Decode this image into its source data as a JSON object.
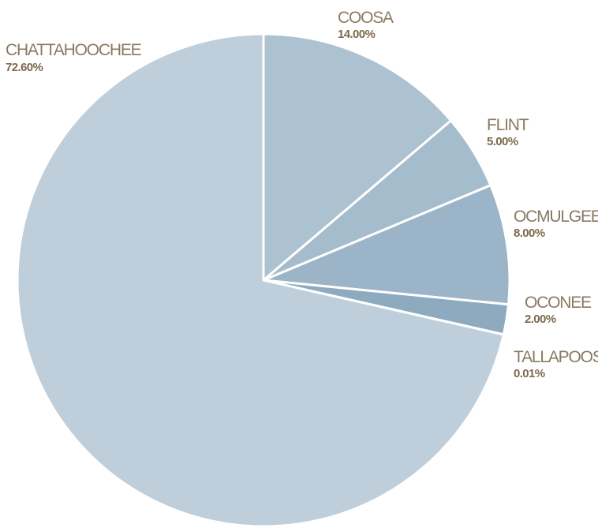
{
  "chart_data": {
    "type": "pie",
    "title": "",
    "start_angle_deg": -90,
    "direction": "clockwise",
    "slices": [
      {
        "label": "COOSA",
        "value_label": "14.00%",
        "value": 14.0,
        "color": "#adc2d1"
      },
      {
        "label": "FLINT",
        "value_label": "5.00%",
        "value": 5.0,
        "color": "#a5bccc"
      },
      {
        "label": "OCMULGEE",
        "value_label": "8.00%",
        "value": 8.0,
        "color": "#9bb4c7"
      },
      {
        "label": "OCONEE",
        "value_label": "2.00%",
        "value": 2.0,
        "color": "#8eaabf"
      },
      {
        "label": "TALLAPOOSA",
        "value_label": "0.01%",
        "value": 0.01,
        "color": "#839fb5"
      },
      {
        "label": "CHATTAHOOCHEE",
        "value_label": "72.60%",
        "value": 72.6,
        "color": "#becfdb"
      }
    ],
    "legend": "none"
  }
}
